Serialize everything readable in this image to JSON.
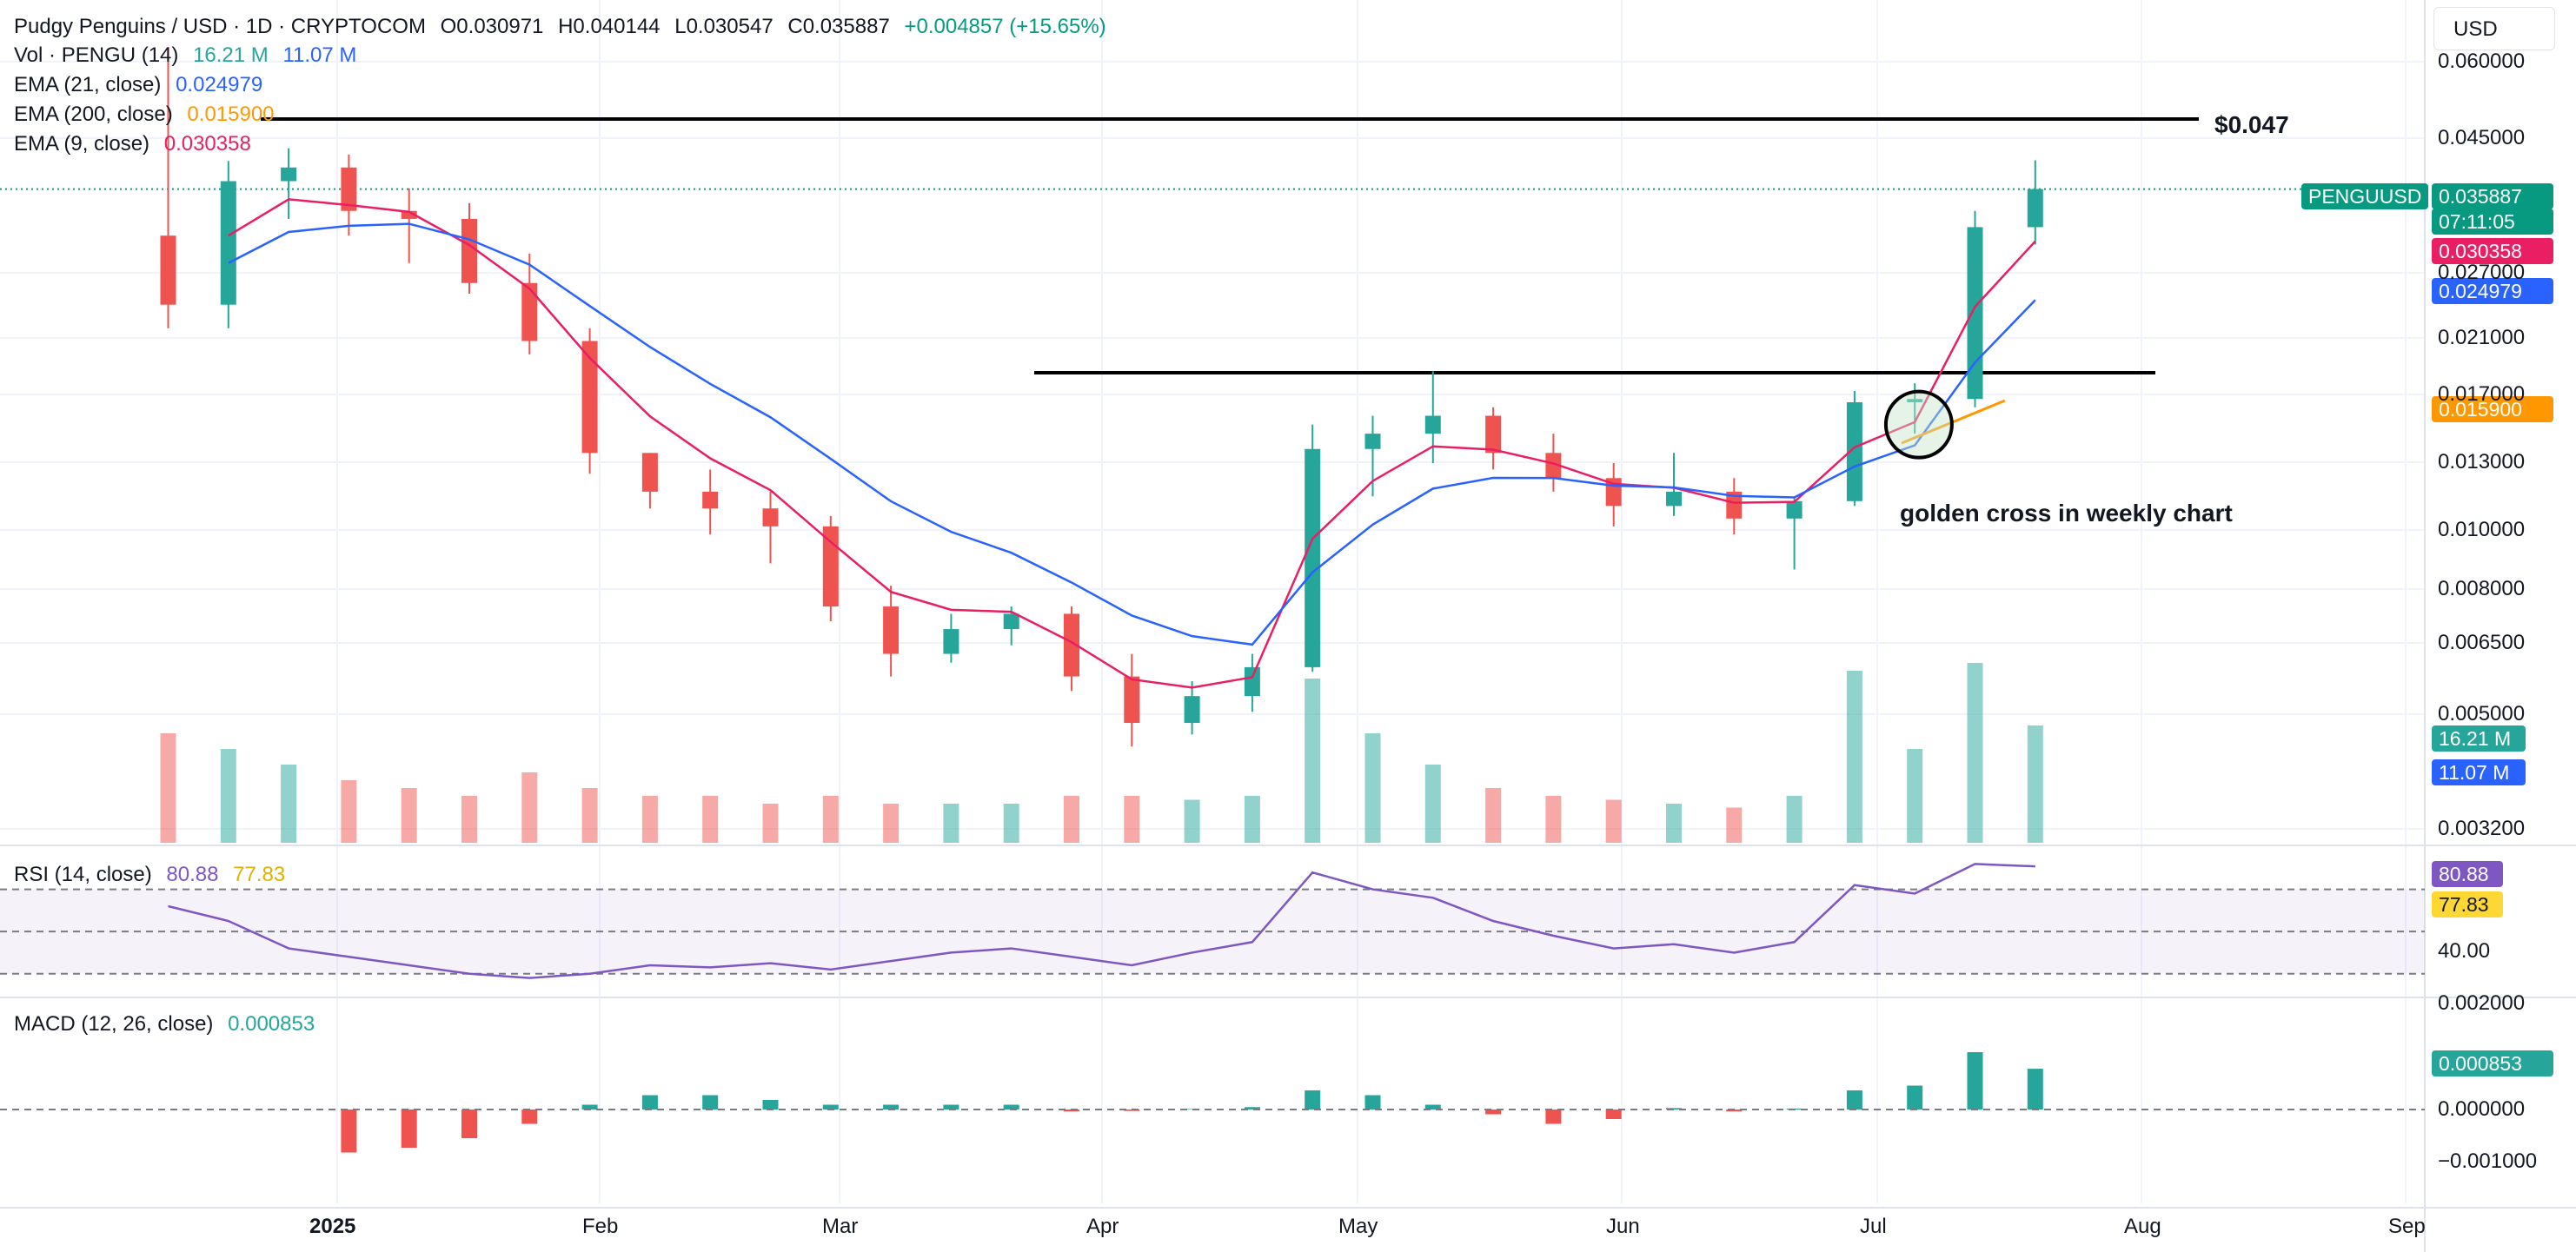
{
  "header": {
    "symbol": "Pudgy Penguins / USD · 1D · CRYPTOCOM",
    "open_label": "O",
    "open": "0.030971",
    "high_label": "H",
    "high": "0.040144",
    "low_label": "L",
    "low": "0.030547",
    "close_label": "C",
    "close": "0.035887",
    "change": "+0.004857 (+15.65%)"
  },
  "indicators": {
    "vol": {
      "label": "Vol · PENGU (14)",
      "v1": "16.21 M",
      "v2": "11.07 M"
    },
    "ema21": {
      "label": "EMA (21, close)",
      "value": "0.024979"
    },
    "ema200": {
      "label": "EMA (200, close)",
      "value": "0.015900"
    },
    "ema9": {
      "label": "EMA (9, close)",
      "value": "0.030358"
    },
    "rsi": {
      "label": "RSI (14, close)",
      "v1": "80.88",
      "v2": "77.83"
    },
    "macd": {
      "label": "MACD (12, 26, close)",
      "value": "0.000853"
    }
  },
  "currency_button": "USD",
  "annotations": {
    "resistance_label": "$0.047",
    "cross_label": "golden cross in weekly chart"
  },
  "price_tags": {
    "symbol_tag": "PENGUUSD",
    "last_price": "0.035887",
    "countdown": "07:11:05",
    "ema9": "0.030358",
    "ema21": "0.024979",
    "ema200": "0.015900",
    "vol1": "16.21 M",
    "vol2": "11.07 M",
    "rsi1": "80.88",
    "rsi2": "77.83",
    "macd": "0.000853"
  },
  "price_axis": [
    "0.060000",
    "0.045000",
    "0.027000",
    "0.021000",
    "0.017000",
    "0.013000",
    "0.010000",
    "0.008000",
    "0.006500",
    "0.005000",
    "0.003200"
  ],
  "rsi_axis": [
    "40.00"
  ],
  "macd_axis": [
    "0.002000",
    "0.000000",
    "−0.001000"
  ],
  "time_axis": [
    "2025",
    "Feb",
    "Mar",
    "Apr",
    "May",
    "Jun",
    "Jul",
    "Aug",
    "Sep"
  ],
  "colors": {
    "up": "#26a69a",
    "down": "#ef5350",
    "ema9": "#e91e63",
    "ema21": "#2962ff",
    "ema200": "#ff9800",
    "rsi": "#7e57c2",
    "rsi_ma": "#fdd835",
    "vol_ma": "#2962ff"
  },
  "chart_data": {
    "type": "candlestick",
    "scale": "log",
    "ylim": [
      0.0029,
      0.065
    ],
    "resistance_levels": [
      0.047,
      0.0177
    ],
    "candles_weekly_approx": [
      {
        "date": "2024-12-17",
        "o": 0.03,
        "h": 0.062,
        "l": 0.021,
        "c": 0.023
      },
      {
        "date": "2024-12-24",
        "o": 0.023,
        "h": 0.04,
        "l": 0.021,
        "c": 0.037
      },
      {
        "date": "2024-12-31",
        "o": 0.037,
        "h": 0.042,
        "l": 0.032,
        "c": 0.039
      },
      {
        "date": "2025-01-07",
        "o": 0.039,
        "h": 0.041,
        "l": 0.03,
        "c": 0.033
      },
      {
        "date": "2025-01-14",
        "o": 0.033,
        "h": 0.036,
        "l": 0.027,
        "c": 0.032
      },
      {
        "date": "2025-01-21",
        "o": 0.032,
        "h": 0.034,
        "l": 0.024,
        "c": 0.025
      },
      {
        "date": "2025-01-28",
        "o": 0.025,
        "h": 0.028,
        "l": 0.019,
        "c": 0.02
      },
      {
        "date": "2025-02-04",
        "o": 0.02,
        "h": 0.021,
        "l": 0.012,
        "c": 0.013
      },
      {
        "date": "2025-02-11",
        "o": 0.013,
        "h": 0.013,
        "l": 0.0105,
        "c": 0.0112
      },
      {
        "date": "2025-02-18",
        "o": 0.0112,
        "h": 0.0122,
        "l": 0.0095,
        "c": 0.0105
      },
      {
        "date": "2025-02-25",
        "o": 0.0105,
        "h": 0.0112,
        "l": 0.0085,
        "c": 0.0098
      },
      {
        "date": "2025-03-04",
        "o": 0.0098,
        "h": 0.0102,
        "l": 0.0068,
        "c": 0.0072
      },
      {
        "date": "2025-03-11",
        "o": 0.0072,
        "h": 0.0078,
        "l": 0.0055,
        "c": 0.006
      },
      {
        "date": "2025-03-18",
        "o": 0.006,
        "h": 0.007,
        "l": 0.0058,
        "c": 0.0066
      },
      {
        "date": "2025-03-25",
        "o": 0.0066,
        "h": 0.0072,
        "l": 0.0062,
        "c": 0.007
      },
      {
        "date": "2025-04-01",
        "o": 0.007,
        "h": 0.0072,
        "l": 0.0052,
        "c": 0.0055
      },
      {
        "date": "2025-04-08",
        "o": 0.0055,
        "h": 0.006,
        "l": 0.0042,
        "c": 0.0046
      },
      {
        "date": "2025-04-15",
        "o": 0.0046,
        "h": 0.0054,
        "l": 0.0044,
        "c": 0.0051
      },
      {
        "date": "2025-04-22",
        "o": 0.0051,
        "h": 0.006,
        "l": 0.0048,
        "c": 0.0057
      },
      {
        "date": "2025-04-29",
        "o": 0.0057,
        "h": 0.0145,
        "l": 0.0056,
        "c": 0.0132
      },
      {
        "date": "2025-05-06",
        "o": 0.0132,
        "h": 0.015,
        "l": 0.011,
        "c": 0.014
      },
      {
        "date": "2025-05-13",
        "o": 0.014,
        "h": 0.0178,
        "l": 0.0125,
        "c": 0.015
      },
      {
        "date": "2025-05-20",
        "o": 0.015,
        "h": 0.0155,
        "l": 0.0122,
        "c": 0.013
      },
      {
        "date": "2025-05-27",
        "o": 0.013,
        "h": 0.014,
        "l": 0.0112,
        "c": 0.0118
      },
      {
        "date": "2025-06-03",
        "o": 0.0118,
        "h": 0.0125,
        "l": 0.0098,
        "c": 0.0106
      },
      {
        "date": "2025-06-10",
        "o": 0.0106,
        "h": 0.013,
        "l": 0.0102,
        "c": 0.0112
      },
      {
        "date": "2025-06-17",
        "o": 0.0112,
        "h": 0.0118,
        "l": 0.0095,
        "c": 0.0101
      },
      {
        "date": "2025-06-24",
        "o": 0.0101,
        "h": 0.011,
        "l": 0.0083,
        "c": 0.0108
      },
      {
        "date": "2025-07-01",
        "o": 0.0108,
        "h": 0.0165,
        "l": 0.0106,
        "c": 0.0158
      },
      {
        "date": "2025-07-08",
        "o": 0.0158,
        "h": 0.017,
        "l": 0.014,
        "c": 0.016
      },
      {
        "date": "2025-07-15",
        "o": 0.016,
        "h": 0.033,
        "l": 0.0155,
        "c": 0.031
      },
      {
        "date": "2025-07-22",
        "o": 0.031,
        "h": 0.0401,
        "l": 0.029,
        "c": 0.0359
      }
    ]
  }
}
